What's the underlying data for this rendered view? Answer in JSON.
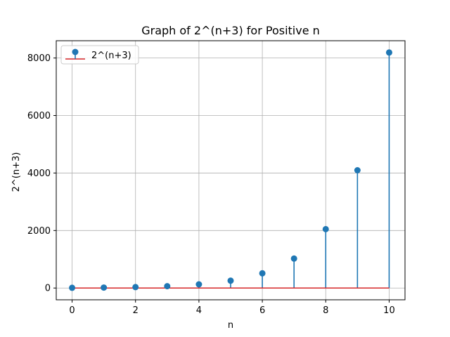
{
  "chart_data": {
    "type": "stem",
    "title": "Graph of 2^(n+3) for Positive n",
    "xlabel": "n",
    "ylabel": "2^(n+3)",
    "x": [
      0,
      1,
      2,
      3,
      4,
      5,
      6,
      7,
      8,
      9,
      10
    ],
    "series": [
      {
        "name": "2^(n+3)",
        "values": [
          8,
          16,
          32,
          64,
          128,
          256,
          512,
          1024,
          2048,
          4096,
          8192
        ],
        "color": "#1f77b4"
      }
    ],
    "baseline": {
      "value": 0,
      "color": "#d62728"
    },
    "xlim": [
      -0.5,
      10.5
    ],
    "ylim": [
      -409.2,
      8601.2
    ],
    "xticks": [
      0,
      2,
      4,
      6,
      8,
      10
    ],
    "xtick_labels": [
      "0",
      "2",
      "4",
      "6",
      "8",
      "10"
    ],
    "yticks": [
      0,
      2000,
      4000,
      6000,
      8000
    ],
    "ytick_labels": [
      "0",
      "2000",
      "4000",
      "6000",
      "8000"
    ],
    "grid": true,
    "grid_color": "#b0b0b0",
    "legend": {
      "position": "top-left",
      "entries": [
        "2^(n+3)"
      ]
    }
  }
}
